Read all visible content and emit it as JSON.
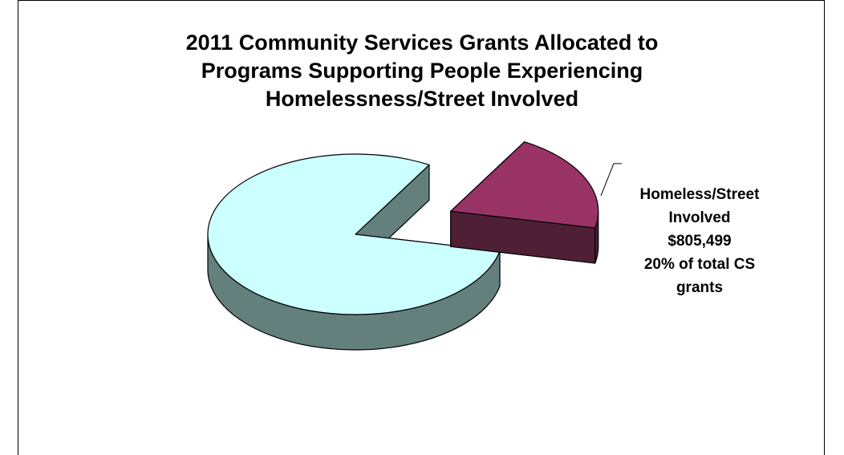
{
  "chart_data": {
    "type": "pie",
    "title_lines": [
      "2011 Community Services Grants Allocated to",
      "Programs Supporting People Experiencing",
      "Homelessness/Street Involved"
    ],
    "slices": [
      {
        "label_lines": [
          "Homeless/Street",
          "Involved",
          "$805,499",
          "20% of total CS",
          "grants"
        ],
        "value": 20,
        "amount": "$805,499",
        "percent": 20,
        "exploded": true,
        "top_color": "#993366",
        "side_color": "#4f2035"
      },
      {
        "label_lines": [],
        "value": 80,
        "exploded": false,
        "top_color": "#ccffff",
        "side_color": "#63807d"
      }
    ],
    "style": "3d-exploded",
    "legend": "none"
  }
}
